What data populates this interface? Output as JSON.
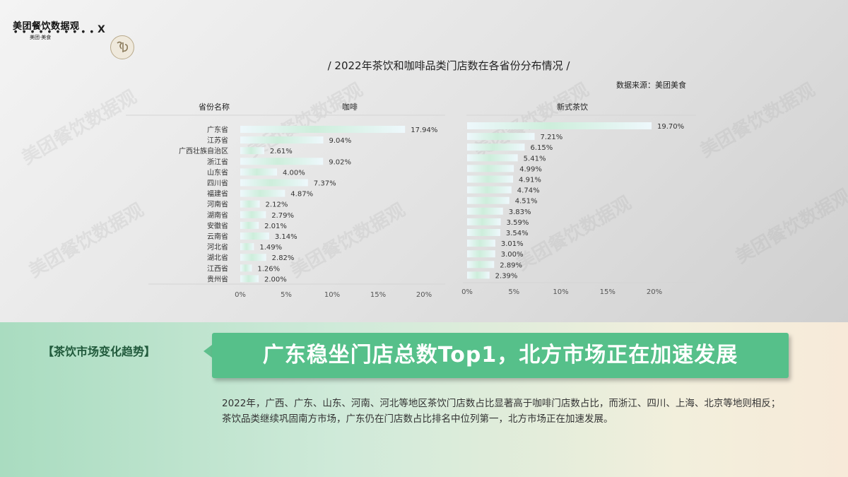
{
  "header": {
    "logo_main": "美团餐饮数据观",
    "logo_sub": "美团·美食",
    "logo_x": "X",
    "title": "/ 2022年茶饮和咖啡品类门店数在各省份分布情况 /",
    "source": "数据来源：美团美食"
  },
  "watermark": {
    "text": "美团餐饮数据观",
    "sub": "美团·美食"
  },
  "colors": {
    "bar_light": "#e9f5fb",
    "bar_accent": "#b9e6c9",
    "headline_bg": "#56c08a",
    "tag_text": "#215a3c"
  },
  "chart_data": [
    {
      "type": "bar",
      "orientation": "horizontal",
      "category_header": "省份名称",
      "title": "咖啡",
      "categories": [
        "广东省",
        "江苏省",
        "广西壮族自治区",
        "浙江省",
        "山东省",
        "四川省",
        "福建省",
        "河南省",
        "湖南省",
        "安徽省",
        "云南省",
        "河北省",
        "湖北省",
        "江西省",
        "贵州省"
      ],
      "values": [
        17.94,
        9.04,
        2.61,
        9.02,
        4.0,
        7.37,
        4.87,
        2.12,
        2.79,
        2.01,
        3.14,
        1.49,
        2.82,
        1.26,
        2.0
      ],
      "value_labels": [
        "17.94%",
        "9.04%",
        "2.61%",
        "9.02%",
        "4.00%",
        "7.37%",
        "4.87%",
        "2.12%",
        "2.79%",
        "2.01%",
        "3.14%",
        "1.49%",
        "2.82%",
        "1.26%",
        "2.00%"
      ],
      "xlim": [
        0,
        20
      ],
      "xticks": [
        "0%",
        "5%",
        "10%",
        "15%",
        "20%"
      ]
    },
    {
      "type": "bar",
      "orientation": "horizontal",
      "title": "新式茶饮",
      "values": [
        19.7,
        7.21,
        6.15,
        5.41,
        4.99,
        4.91,
        4.74,
        4.51,
        3.83,
        3.59,
        3.54,
        3.01,
        3.0,
        2.89,
        2.39
      ],
      "value_labels": [
        "19.70%",
        "7.21%",
        "6.15%",
        "5.41%",
        "4.99%",
        "4.91%",
        "4.74%",
        "4.51%",
        "3.83%",
        "3.59%",
        "3.54%",
        "3.01%",
        "3.00%",
        "2.89%",
        "2.39%"
      ],
      "xlim": [
        0,
        20
      ],
      "xticks": [
        "0%",
        "5%",
        "10%",
        "15%",
        "20%"
      ]
    }
  ],
  "insight": {
    "tag": "【茶饮市场变化趋势】",
    "headline": "广东稳坐门店总数Top1，北方市场正在加速发展",
    "paragraph_1": "2022年，广西、广东、山东、河南、河北等地区茶饮门店数占比显著高于咖啡门店数占比，而浙江、四川、上海、北京等地则相反；",
    "paragraph_2": "茶饮品类继续巩固南方市场，广东仍在门店数占比排名中位列第一，北方市场正在加速发展。"
  }
}
